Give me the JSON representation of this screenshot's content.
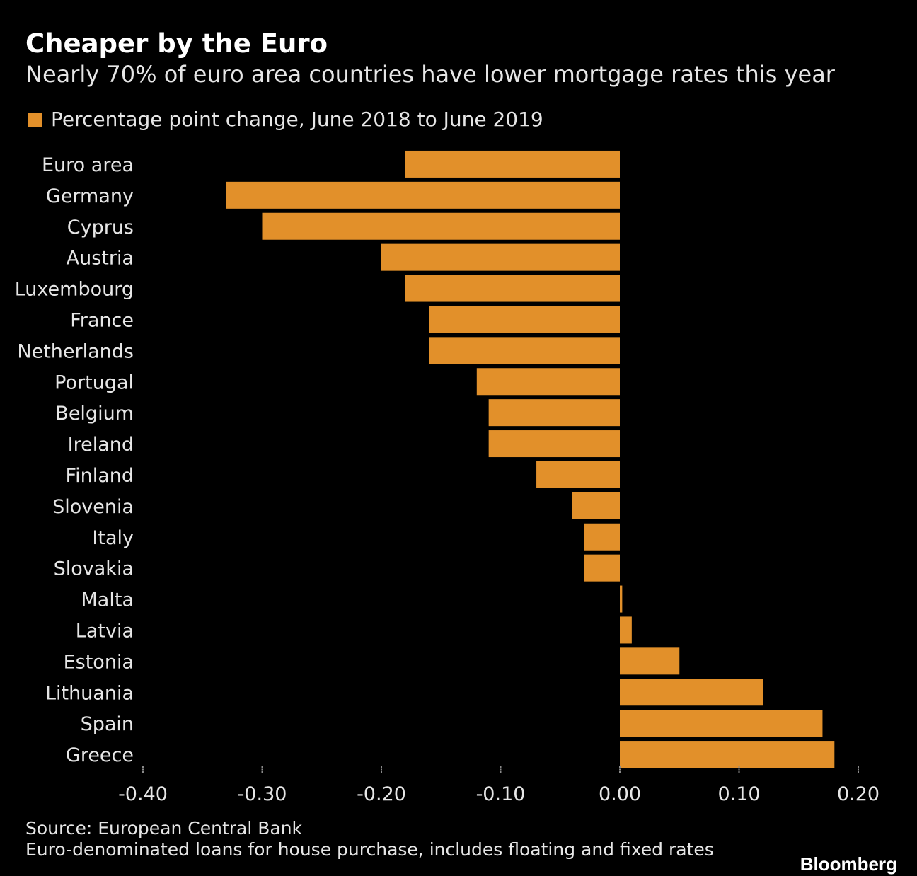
{
  "header": {
    "title": "Cheaper by the Euro",
    "subtitle": "Nearly 70% of euro area countries have lower mortgage rates this year"
  },
  "footer": {
    "source": "Source: European Central Bank",
    "note": "Euro-denominated loans for house purchase, includes floating and fixed rates",
    "brand": "Bloomberg"
  },
  "colors": {
    "bar": "#E2902A",
    "background": "#000000",
    "text": "#E6E6E6"
  },
  "chart_data": {
    "type": "bar",
    "orientation": "horizontal",
    "categories": [
      "Euro area",
      "Germany",
      "Cyprus",
      "Austria",
      "Luxembourg",
      "France",
      "Netherlands",
      "Portugal",
      "Belgium",
      "Ireland",
      "Finland",
      "Slovenia",
      "Italy",
      "Slovakia",
      "Malta",
      "Latvia",
      "Estonia",
      "Lithuania",
      "Spain",
      "Greece"
    ],
    "series": [
      {
        "name": "Percentage point change, June 2018 to June 2019",
        "values": [
          -0.18,
          -0.33,
          -0.3,
          -0.2,
          -0.18,
          -0.16,
          -0.16,
          -0.12,
          -0.11,
          -0.11,
          -0.07,
          -0.04,
          -0.03,
          -0.03,
          0.002,
          0.01,
          0.05,
          0.12,
          0.17,
          0.18
        ]
      }
    ],
    "xlim": [
      -0.4,
      0.2
    ],
    "x_ticks": [
      -0.4,
      -0.3,
      -0.2,
      -0.1,
      0.0,
      0.1,
      0.2
    ],
    "x_tick_labels": [
      "-0.40",
      "-0.30",
      "-0.20",
      "-0.10",
      "0.00",
      "0.10",
      "0.20"
    ],
    "legend_position": "top-left",
    "grid": false
  }
}
